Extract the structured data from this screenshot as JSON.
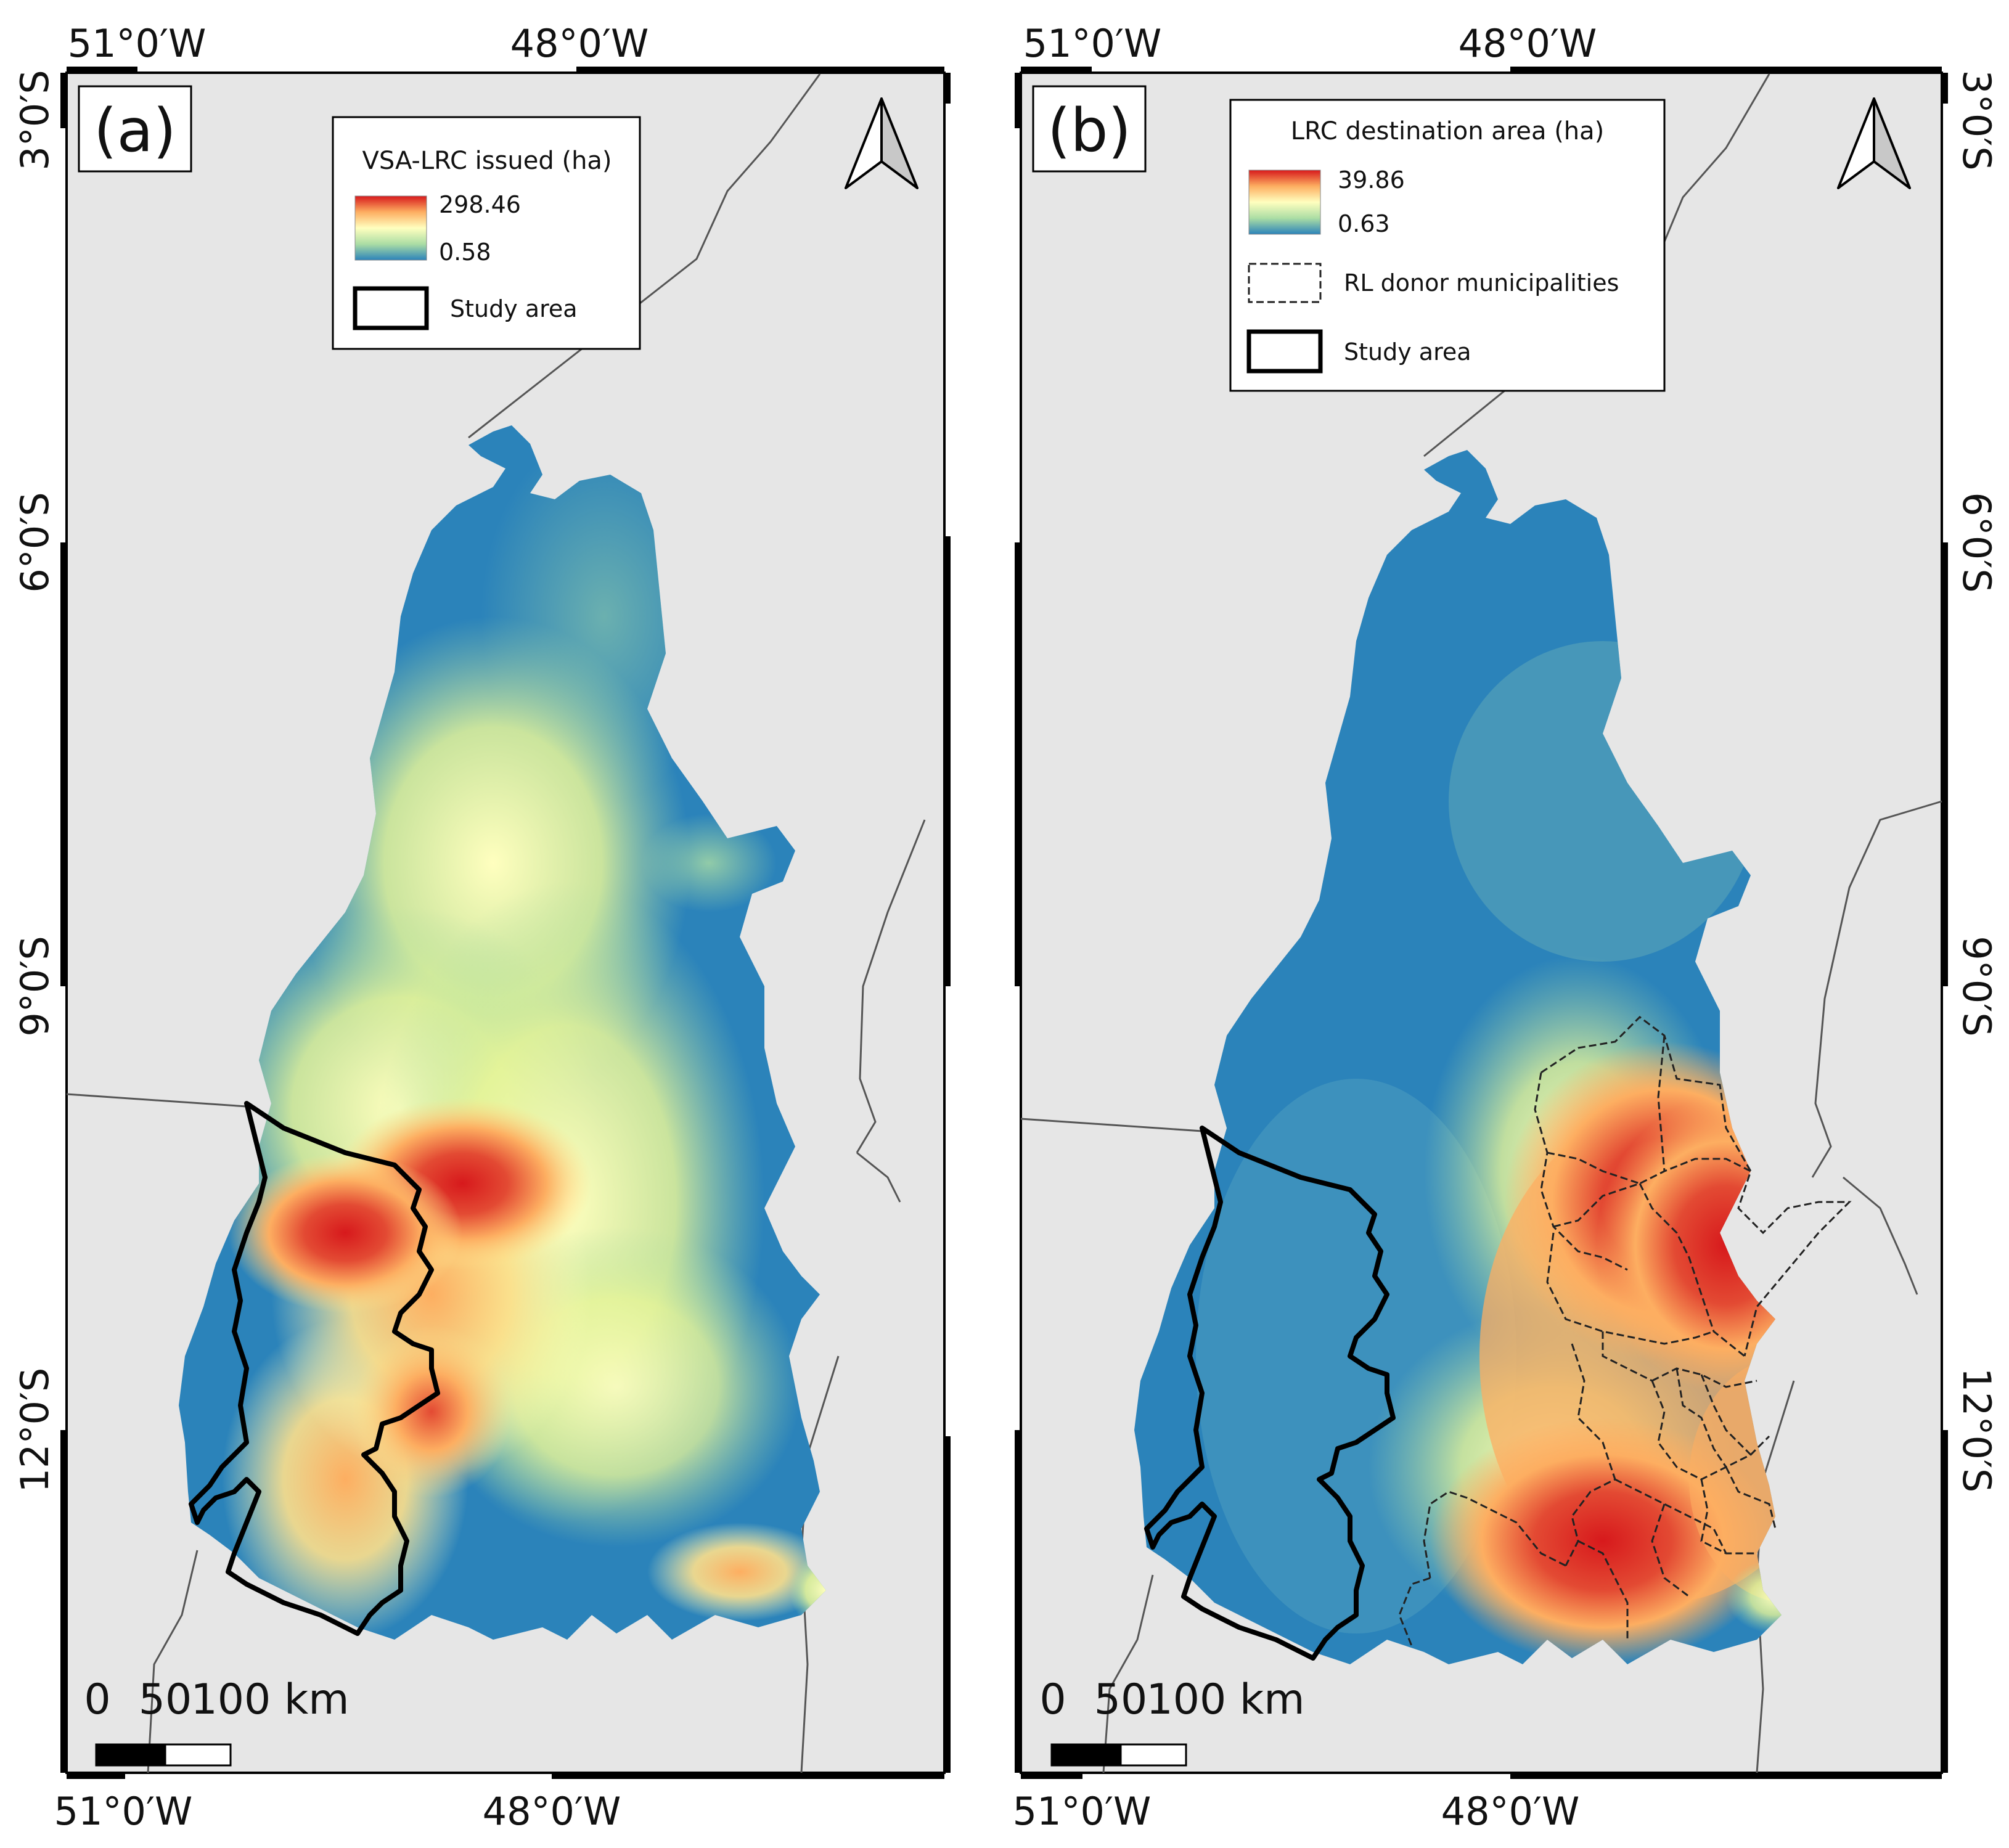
{
  "panels": [
    {
      "id": "a",
      "label": "(a)",
      "legend": {
        "title": "VSA-LRC issued (ha)",
        "max": "298.46",
        "min": "0.58",
        "items": [
          "Study area"
        ]
      },
      "top_ticks": [
        "51°0′W",
        "48°0′W"
      ],
      "bottom_ticks": [
        "51°0′W",
        "48°0′W"
      ],
      "left_ticks": [
        "3°0′S",
        "6°0′S",
        "9°0′S",
        "12°0′S"
      ],
      "scale_bar": [
        "0",
        "50",
        "100 km"
      ]
    },
    {
      "id": "b",
      "label": "(b)",
      "legend": {
        "title": "LRC destination area (ha)",
        "max": "39.86",
        "min": "0.63",
        "items": [
          "RL donor municipalities",
          "Study area"
        ]
      },
      "top_ticks": [
        "51°0′W",
        "48°0′W"
      ],
      "bottom_ticks": [
        "51°0′W",
        "48°0′W"
      ],
      "right_ticks": [
        "3°0′S",
        "6°0′S",
        "9°0′S",
        "12°0′S"
      ],
      "scale_bar": [
        "0",
        "50",
        "100 km"
      ]
    }
  ],
  "colors": {
    "ramp_high": "#d7191c",
    "ramp_mid_high": "#fdae61",
    "ramp_mid": "#ffffbf",
    "ramp_mid_low": "#abdda4",
    "ramp_low": "#2b83ba",
    "background": "#e6e6e6"
  },
  "icons": [
    "north-arrow-icon"
  ]
}
